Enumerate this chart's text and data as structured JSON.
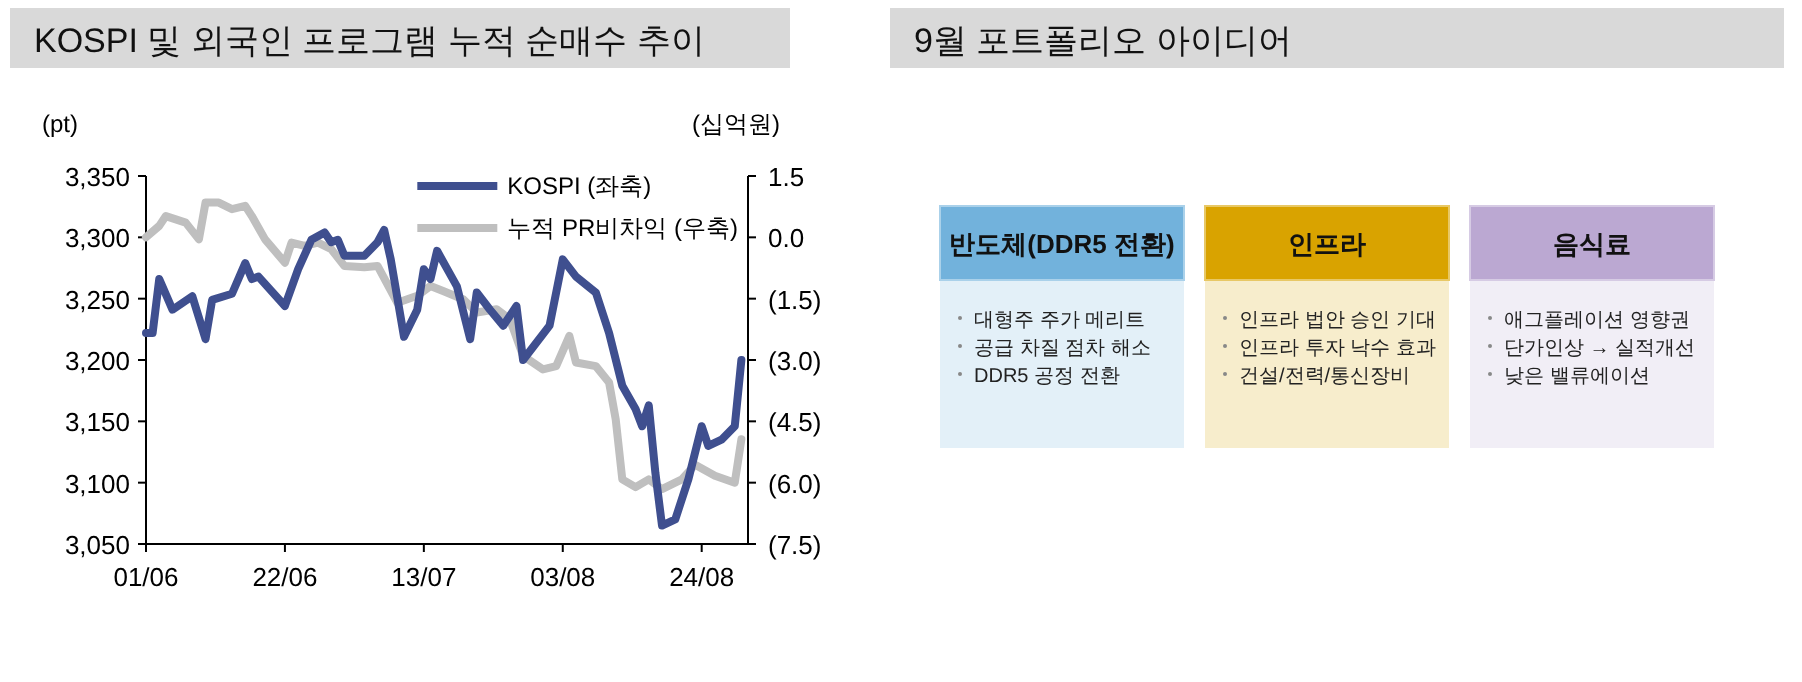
{
  "chart_data": [
    {
      "type": "line",
      "title": "KOSPI 및 외국인 프로그램 누적 순매수 추이",
      "ylabel": "(pt)",
      "y2label": "(십억원)",
      "legend": "top right",
      "xlim": [
        "--06-01",
        "--08-31"
      ],
      "xticks": [
        {
          "value": "--06-01",
          "label": "01/06"
        },
        {
          "value": "--06-22",
          "label": "22/06"
        },
        {
          "value": "--07-13",
          "label": "13/07"
        },
        {
          "value": "--08-03",
          "label": "03/08"
        },
        {
          "value": "--08-24",
          "label": "24/08"
        }
      ],
      "ylim": [
        3050,
        3350
      ],
      "yticks": [
        {
          "value": 3050,
          "label": "3,050"
        },
        {
          "value": 3100,
          "label": "3,100"
        },
        {
          "value": 3150,
          "label": "3,150"
        },
        {
          "value": 3200,
          "label": "3,200"
        },
        {
          "value": 3250,
          "label": "3,250"
        },
        {
          "value": 3300,
          "label": "3,300"
        },
        {
          "value": 3350,
          "label": "3,350"
        }
      ],
      "y2lim": [
        -7.5,
        1.5
      ],
      "y2ticks": [
        {
          "value": -7.5,
          "label": "(7.5)"
        },
        {
          "value": -6,
          "label": "(6.0)"
        },
        {
          "value": -4.5,
          "label": "(4.5)"
        },
        {
          "value": -3,
          "label": "(3.0)"
        },
        {
          "value": -1.5,
          "label": "(1.5)"
        },
        {
          "value": 0,
          "label": "0.0"
        },
        {
          "value": 1.5,
          "label": "1.5"
        }
      ],
      "series": [
        {
          "name": "KOSPI (좌축)",
          "color": "#3f4f8f",
          "x": [
            "--06-01",
            "--06-02",
            "--06-03",
            "--06-05",
            "--06-08",
            "--06-10",
            "--06-11",
            "--06-14",
            "--06-16",
            "--06-17",
            "--06-18",
            "--06-22",
            "--06-24",
            "--06-26",
            "--06-28",
            "--06-29",
            "--06-30",
            "--07-01",
            "--07-04",
            "--07-06",
            "--07-07",
            "--07-08",
            "--07-10",
            "--07-12",
            "--07-13",
            "--07-14",
            "--07-15",
            "--07-18",
            "--07-20",
            "--07-21",
            "--07-23",
            "--07-25",
            "--07-27",
            "--07-28",
            "--08-01",
            "--08-03",
            "--08-05",
            "--08-08",
            "--08-10",
            "--08-12",
            "--08-14",
            "--08-15",
            "--08-16",
            "--08-17",
            "--08-18",
            "--08-20",
            "--08-22",
            "--08-24",
            "--08-25",
            "--08-27",
            "--08-29",
            "--08-30"
          ],
          "values": [
            3222,
            3222,
            3266,
            3241,
            3252,
            3217,
            3249,
            3254,
            3279,
            3266,
            3268,
            3244,
            3274,
            3298,
            3304,
            3296,
            3298,
            3285,
            3285,
            3296,
            3306,
            3282,
            3219,
            3241,
            3274,
            3266,
            3289,
            3260,
            3217,
            3255,
            3241,
            3228,
            3244,
            3200,
            3228,
            3282,
            3268,
            3255,
            3222,
            3179,
            3160,
            3146,
            3163,
            3108,
            3065,
            3070,
            3103,
            3146,
            3130,
            3135,
            3146,
            3200
          ]
        },
        {
          "name": "누적 PR비차익 (우축)",
          "color": "#bfbfbf",
          "axis": "y2",
          "x": [
            "--06-01",
            "--06-03",
            "--06-04",
            "--06-07",
            "--06-09",
            "--06-10",
            "--06-12",
            "--06-14",
            "--06-16",
            "--06-17",
            "--06-19",
            "--06-22",
            "--06-23",
            "--06-25",
            "--06-27",
            "--06-29",
            "--07-01",
            "--07-04",
            "--07-06",
            "--07-09",
            "--07-12",
            "--07-14",
            "--07-16",
            "--07-19",
            "--07-20",
            "--07-21",
            "--07-24",
            "--07-26",
            "--07-28",
            "--07-31",
            "--08-02",
            "--08-04",
            "--08-05",
            "--08-08",
            "--08-10",
            "--08-11",
            "--08-12",
            "--08-14",
            "--08-16",
            "--08-18",
            "--08-21",
            "--08-23",
            "--08-26",
            "--08-29",
            "--08-30"
          ],
          "values": [
            0.0,
            0.28,
            0.52,
            0.36,
            -0.05,
            0.85,
            0.85,
            0.69,
            0.77,
            0.52,
            -0.05,
            -0.62,
            -0.13,
            -0.21,
            -0.13,
            -0.29,
            -0.7,
            -0.73,
            -0.7,
            -1.6,
            -1.43,
            -1.19,
            -1.32,
            -1.52,
            -1.68,
            -1.84,
            -1.76,
            -2.0,
            -2.9,
            -3.23,
            -3.15,
            -2.41,
            -3.06,
            -3.15,
            -3.55,
            -4.45,
            -5.92,
            -6.11,
            -5.92,
            -6.16,
            -5.92,
            -5.56,
            -5.83,
            -6.0,
            -4.94
          ]
        }
      ]
    },
    {
      "type": "other",
      "title": "9월 포트폴리오 아이디어",
      "categories": [
        "반도체(DDR5 전환)",
        "인프라",
        "음식료"
      ],
      "colors": [
        "#72b2dc",
        "#d9a300",
        "#bba8d2"
      ],
      "annotations": [
        "대형주 주가 메리트",
        "공급 차질 점차 해소",
        "DDR5 공정 전환",
        "인프라 법안 승인 기대",
        "인프라 투자 낙수 효과",
        "건설/전력/통신장비",
        "애그플레이션 영향권",
        "단가인상 → 실적개선",
        "낮은 밸류에이션"
      ]
    }
  ]
}
